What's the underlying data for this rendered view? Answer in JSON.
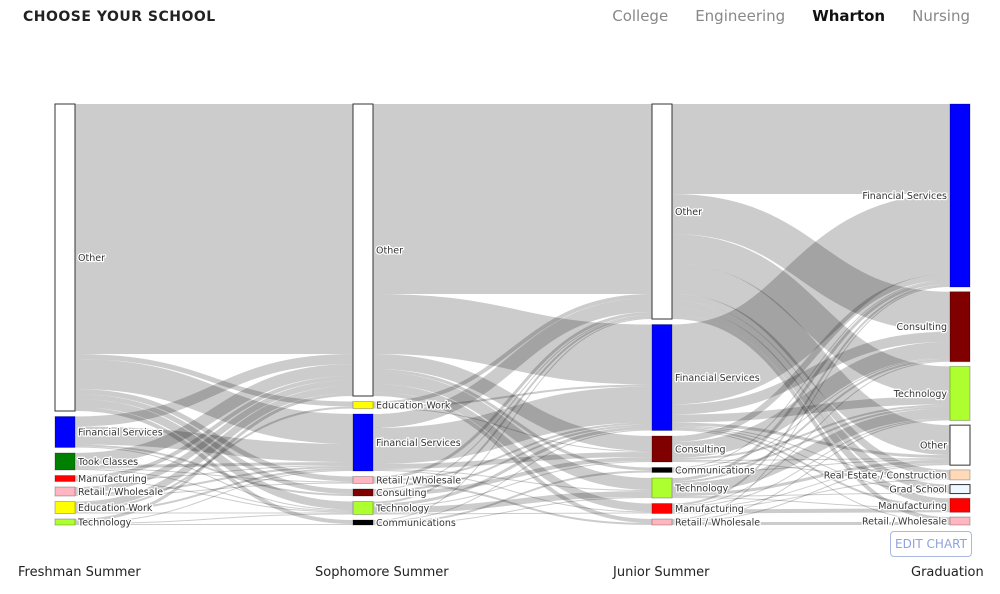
{
  "header": {
    "title": "CHOOSE YOUR SCHOOL",
    "tabs": [
      {
        "label": "College",
        "active": false
      },
      {
        "label": "Engineering",
        "active": false
      },
      {
        "label": "Wharton",
        "active": true
      },
      {
        "label": "Nursing",
        "active": false
      }
    ]
  },
  "edit_chart_label": "EDIT CHART",
  "chart_data": {
    "type": "sankey",
    "stages": [
      "Freshman Summer",
      "Sophomore Summer",
      "Junior Summer",
      "Graduation"
    ],
    "link_color": "#cccccc",
    "nodes": [
      [
        {
          "name": "Other",
          "color": "#ffffff"
        },
        {
          "name": "Financial Services",
          "color": "#0000ff"
        },
        {
          "name": "Took Classes",
          "color": "#008000"
        },
        {
          "name": "Manufacturing",
          "color": "#ff0000"
        },
        {
          "name": "Retail / Wholesale",
          "color": "#ffb6c1"
        },
        {
          "name": "Education Work",
          "color": "#ffff00"
        },
        {
          "name": "Technology",
          "color": "#adff2f"
        }
      ],
      [
        {
          "name": "Other",
          "color": "#ffffff"
        },
        {
          "name": "Education Work",
          "color": "#ffff00"
        },
        {
          "name": "Financial Services",
          "color": "#0000ff"
        },
        {
          "name": "Retail / Wholesale",
          "color": "#ffb6c1"
        },
        {
          "name": "Consulting",
          "color": "#800000"
        },
        {
          "name": "Technology",
          "color": "#adff2f"
        },
        {
          "name": "Communications",
          "color": "#000000"
        }
      ],
      [
        {
          "name": "Other",
          "color": "#ffffff"
        },
        {
          "name": "Financial Services",
          "color": "#0000ff"
        },
        {
          "name": "Consulting",
          "color": "#800000"
        },
        {
          "name": "Communications",
          "color": "#000000"
        },
        {
          "name": "Technology",
          "color": "#adff2f"
        },
        {
          "name": "Manufacturing",
          "color": "#ff0000"
        },
        {
          "name": "Retail / Wholesale",
          "color": "#ffb6c1"
        }
      ],
      [
        {
          "name": "Financial Services",
          "color": "#0000ff"
        },
        {
          "name": "Consulting",
          "color": "#800000"
        },
        {
          "name": "Technology",
          "color": "#adff2f"
        },
        {
          "name": "Other",
          "color": "#ffffff"
        },
        {
          "name": "Real Estate / Construction",
          "color": "#ffdab9"
        },
        {
          "name": "Grad School",
          "color": "#f0f8ff"
        },
        {
          "name": "Manufacturing",
          "color": "#ff0000"
        },
        {
          "name": "Retail / Wholesale",
          "color": "#ffb6c1"
        }
      ]
    ],
    "flows": [
      [
        [
          "Other",
          "Other",
          250
        ],
        [
          "Other",
          "Education Work",
          5
        ],
        [
          "Other",
          "Financial Services",
          30
        ],
        [
          "Other",
          "Retail / Wholesale",
          5
        ],
        [
          "Other",
          "Consulting",
          5
        ],
        [
          "Other",
          "Technology",
          8
        ],
        [
          "Other",
          "Communications",
          4
        ],
        [
          "Financial Services",
          "Other",
          10
        ],
        [
          "Financial Services",
          "Financial Services",
          18
        ],
        [
          "Financial Services",
          "Consulting",
          2
        ],
        [
          "Financial Services",
          "Technology",
          1
        ],
        [
          "Took Classes",
          "Other",
          12
        ],
        [
          "Took Classes",
          "Financial Services",
          3
        ],
        [
          "Took Classes",
          "Retail / Wholesale",
          1
        ],
        [
          "Took Classes",
          "Technology",
          1
        ],
        [
          "Manufacturing",
          "Other",
          4
        ],
        [
          "Manufacturing",
          "Financial Services",
          1
        ],
        [
          "Manufacturing",
          "Technology",
          1
        ],
        [
          "Retail / Wholesale",
          "Other",
          6
        ],
        [
          "Retail / Wholesale",
          "Financial Services",
          2
        ],
        [
          "Retail / Wholesale",
          "Retail / Wholesale",
          1
        ],
        [
          "Education Work",
          "Other",
          7
        ],
        [
          "Education Work",
          "Education Work",
          2
        ],
        [
          "Education Work",
          "Financial Services",
          2
        ],
        [
          "Education Work",
          "Technology",
          1
        ],
        [
          "Technology",
          "Other",
          3
        ],
        [
          "Technology",
          "Financial Services",
          1
        ],
        [
          "Technology",
          "Technology",
          1
        ],
        [
          "Technology",
          "Communications",
          1
        ]
      ],
      [
        [
          "Other",
          "Other",
          190
        ],
        [
          "Other",
          "Financial Services",
          60
        ],
        [
          "Other",
          "Consulting",
          15
        ],
        [
          "Other",
          "Communications",
          3
        ],
        [
          "Other",
          "Technology",
          12
        ],
        [
          "Other",
          "Manufacturing",
          8
        ],
        [
          "Other",
          "Retail / Wholesale",
          4
        ],
        [
          "Education Work",
          "Other",
          4
        ],
        [
          "Education Work",
          "Financial Services",
          2
        ],
        [
          "Education Work",
          "Consulting",
          1
        ],
        [
          "Financial Services",
          "Other",
          14
        ],
        [
          "Financial Services",
          "Financial Services",
          36
        ],
        [
          "Financial Services",
          "Consulting",
          5
        ],
        [
          "Financial Services",
          "Technology",
          1
        ],
        [
          "Financial Services",
          "Manufacturing",
          1
        ],
        [
          "Retail / Wholesale",
          "Other",
          3
        ],
        [
          "Retail / Wholesale",
          "Financial Services",
          2
        ],
        [
          "Retail / Wholesale",
          "Retail / Wholesale",
          2
        ],
        [
          "Consulting",
          "Other",
          1
        ],
        [
          "Consulting",
          "Financial Services",
          2
        ],
        [
          "Consulting",
          "Consulting",
          4
        ],
        [
          "Technology",
          "Other",
          2
        ],
        [
          "Technology",
          "Financial Services",
          3
        ],
        [
          "Technology",
          "Consulting",
          1
        ],
        [
          "Technology",
          "Technology",
          6
        ],
        [
          "Technology",
          "Manufacturing",
          1
        ],
        [
          "Communications",
          "Other",
          1
        ],
        [
          "Communications",
          "Financial Services",
          1
        ],
        [
          "Communications",
          "Communications",
          2
        ],
        [
          "Communications",
          "Technology",
          1
        ]
      ],
      [
        [
          "Other",
          "Financial Services",
          90
        ],
        [
          "Other",
          "Consulting",
          40
        ],
        [
          "Other",
          "Technology",
          30
        ],
        [
          "Other",
          "Other",
          30
        ],
        [
          "Other",
          "Real Estate / Construction",
          7
        ],
        [
          "Other",
          "Grad School",
          7
        ],
        [
          "Other",
          "Manufacturing",
          7
        ],
        [
          "Other",
          "Retail / Wholesale",
          4
        ],
        [
          "Financial Services",
          "Financial Services",
          80
        ],
        [
          "Financial Services",
          "Consulting",
          10
        ],
        [
          "Financial Services",
          "Technology",
          8
        ],
        [
          "Financial Services",
          "Other",
          3
        ],
        [
          "Financial Services",
          "Real Estate / Construction",
          1
        ],
        [
          "Financial Services",
          "Grad School",
          1
        ],
        [
          "Financial Services",
          "Manufacturing",
          2
        ],
        [
          "Financial Services",
          "Retail / Wholesale",
          1
        ],
        [
          "Consulting",
          "Financial Services",
          6
        ],
        [
          "Consulting",
          "Consulting",
          16
        ],
        [
          "Consulting",
          "Technology",
          2
        ],
        [
          "Consulting",
          "Other",
          1
        ],
        [
          "Consulting",
          "Real Estate / Construction",
          1
        ],
        [
          "Communications",
          "Financial Services",
          1
        ],
        [
          "Communications",
          "Consulting",
          1
        ],
        [
          "Communications",
          "Technology",
          2
        ],
        [
          "Communications",
          "Other",
          1
        ],
        [
          "Technology",
          "Financial Services",
          3
        ],
        [
          "Technology",
          "Consulting",
          2
        ],
        [
          "Technology",
          "Technology",
          10
        ],
        [
          "Technology",
          "Other",
          3
        ],
        [
          "Technology",
          "Grad School",
          1
        ],
        [
          "Technology",
          "Manufacturing",
          1
        ],
        [
          "Manufacturing",
          "Financial Services",
          2
        ],
        [
          "Manufacturing",
          "Consulting",
          1
        ],
        [
          "Manufacturing",
          "Technology",
          1
        ],
        [
          "Manufacturing",
          "Other",
          1
        ],
        [
          "Manufacturing",
          "Real Estate / Construction",
          1
        ],
        [
          "Manufacturing",
          "Manufacturing",
          4
        ],
        [
          "Retail / Wholesale",
          "Financial Services",
          1
        ],
        [
          "Retail / Wholesale",
          "Technology",
          1
        ],
        [
          "Retail / Wholesale",
          "Other",
          1
        ],
        [
          "Retail / Wholesale",
          "Retail / Wholesale",
          3
        ]
      ]
    ]
  }
}
